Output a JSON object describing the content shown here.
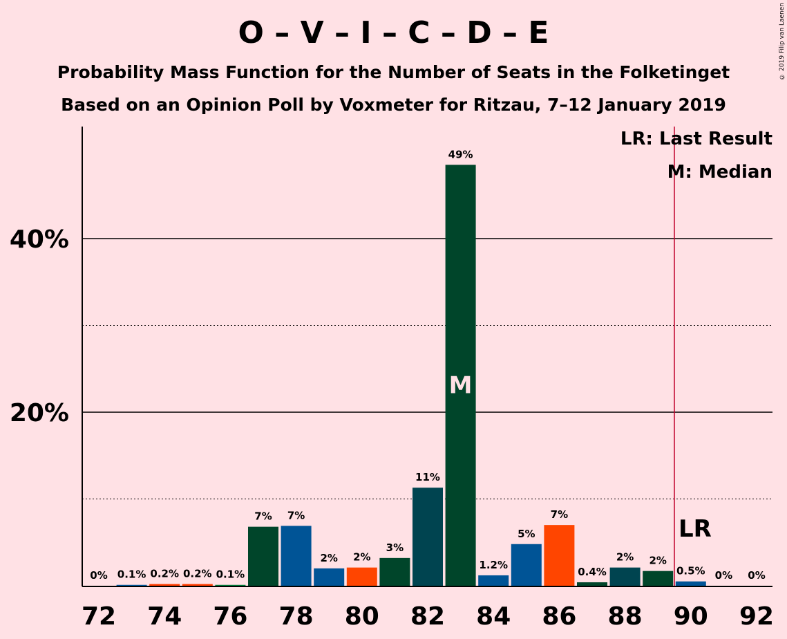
{
  "title": "O – V – I – C – D – E",
  "subtitle1": "Probability Mass Function for the Number of Seats in the Folketinget",
  "subtitle2": "Based on an Opinion Poll by Voxmeter for Ritzau, 7–12 January 2019",
  "copyright": "© 2019 Filip van Laenen",
  "legend": {
    "lr": "LR: Last Result",
    "m": "M: Median"
  },
  "chart_data": {
    "type": "bar",
    "x": [
      72,
      73,
      74,
      75,
      76,
      77,
      78,
      79,
      80,
      81,
      82,
      83,
      84,
      85,
      86,
      87,
      88,
      89,
      90,
      91,
      92
    ],
    "values": [
      0,
      0.1,
      0.2,
      0.2,
      0.1,
      6.8,
      6.9,
      2.0,
      2.1,
      3.2,
      11.3,
      48.5,
      1.2,
      4.8,
      7.0,
      0.4,
      2.1,
      1.7,
      0.5,
      0,
      0
    ],
    "labels": [
      "0%",
      "0.1%",
      "0.2%",
      "0.2%",
      "0.1%",
      "7%",
      "7%",
      "2%",
      "2%",
      "3%",
      "11%",
      "49%",
      "1.2%",
      "5%",
      "7%",
      "0.4%",
      "2%",
      "2%",
      "0.5%",
      "0%",
      "0%"
    ],
    "colors": [
      "#00843D",
      "#005EA5",
      "#FF3C00",
      "#FF3C00",
      "#00843D",
      "#00452A",
      "#005496",
      "#005496",
      "#FF4500",
      "#00452A",
      "#004450",
      "#00452A",
      "#005496",
      "#005496",
      "#FF4500",
      "#00452A",
      "#004450",
      "#00452A",
      "#005496",
      "#005496",
      "#FF4500"
    ],
    "xticks": [
      72,
      74,
      76,
      78,
      80,
      82,
      84,
      86,
      88,
      90,
      92
    ],
    "ytick_labels": {
      "20": "20%",
      "40": "40%"
    },
    "ylim": [
      0,
      53
    ],
    "grid_major": [
      20,
      40
    ],
    "grid_minor": [
      10,
      30
    ],
    "median": 83,
    "median_label": "M",
    "last_result": 89.5,
    "last_result_label": "LR",
    "accent_line_color": "#C0002B",
    "legend_placement": "top-right"
  }
}
